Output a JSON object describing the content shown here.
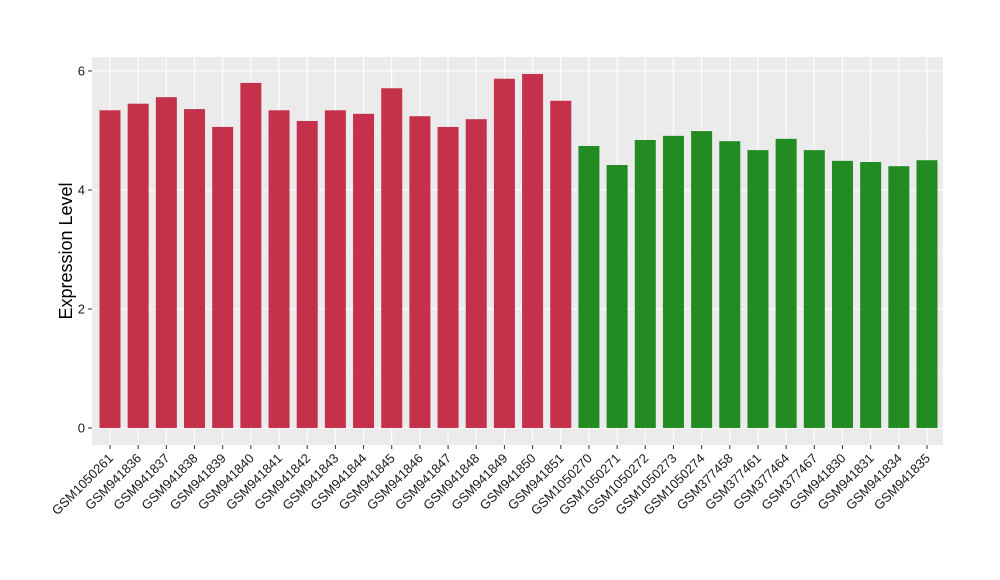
{
  "chart_data": {
    "type": "bar",
    "title": "",
    "xlabel": "",
    "ylabel": "Expression Level",
    "ylim": [
      0,
      6.25
    ],
    "yticks": [
      0,
      2,
      4,
      6
    ],
    "grid": true,
    "categories": [
      "GSM1050261",
      "GSM941836",
      "GSM941837",
      "GSM941838",
      "GSM941839",
      "GSM941840",
      "GSM941841",
      "GSM941842",
      "GSM941843",
      "GSM941844",
      "GSM941845",
      "GSM941846",
      "GSM941847",
      "GSM941848",
      "GSM941849",
      "GSM941850",
      "GSM941851",
      "GSM1050270",
      "GSM1050271",
      "GSM1050272",
      "GSM1050273",
      "GSM1050274",
      "GSM377458",
      "GSM377461",
      "GSM377464",
      "GSM377467",
      "GSM941830",
      "GSM941831",
      "GSM941834",
      "GSM941835"
    ],
    "values": [
      5.34,
      5.45,
      5.56,
      5.36,
      5.06,
      5.8,
      5.34,
      5.16,
      5.34,
      5.28,
      5.71,
      5.24,
      5.06,
      5.19,
      5.87,
      5.95,
      5.5,
      4.74,
      4.42,
      4.84,
      4.91,
      4.99,
      4.82,
      4.67,
      4.86,
      4.67,
      4.49,
      4.47,
      4.4,
      4.5
    ],
    "groups": [
      0,
      0,
      0,
      0,
      0,
      0,
      0,
      0,
      0,
      0,
      0,
      0,
      0,
      0,
      0,
      0,
      0,
      1,
      1,
      1,
      1,
      1,
      1,
      1,
      1,
      1,
      1,
      1,
      1,
      1
    ],
    "group_colors": [
      "#c5314a",
      "#228b22"
    ],
    "panel_color": "#ebebeb"
  }
}
